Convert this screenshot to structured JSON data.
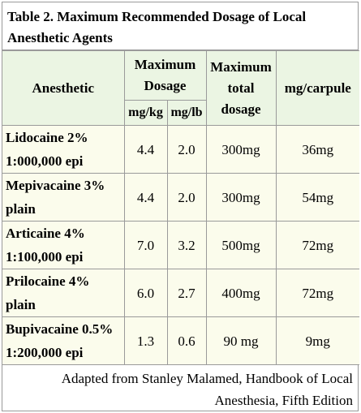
{
  "title": "Table 2. Maximum Recommended Dosage of Local Anesthetic Agents",
  "headers": {
    "anesthetic": "Anesthetic",
    "max_dosage": "Maximum Dosage",
    "mg_kg": "mg/kg",
    "mg_lb": "mg/lb",
    "max_total": "Maximum total dosage",
    "mg_carpule": "mg/carpule"
  },
  "rows": [
    {
      "line1": "Lidocaine 2%",
      "line2": "1:000,000 epi",
      "mg_kg": "4.4",
      "mg_lb": "2.0",
      "total": "300mg",
      "carpule": "36mg"
    },
    {
      "line1": "Mepivacaine 3%",
      "line2": "plain",
      "mg_kg": "4.4",
      "mg_lb": "2.0",
      "total": "300mg",
      "carpule": "54mg"
    },
    {
      "line1": "Articaine 4%",
      "line2": "1:100,000 epi",
      "mg_kg": "7.0",
      "mg_lb": "3.2",
      "total": "500mg",
      "carpule": "72mg"
    },
    {
      "line1": "Prilocaine 4%",
      "line2": "plain",
      "mg_kg": "6.0",
      "mg_lb": "2.7",
      "total": "400mg",
      "carpule": "72mg"
    },
    {
      "line1": "Bupivacaine 0.5%",
      "line2": "1:200,000 epi",
      "mg_kg": "1.3",
      "mg_lb": "0.6",
      "total": "90 mg",
      "carpule": "9mg"
    }
  ],
  "footer": "Adapted from Stanley Malamed, Handbook of Local Anesthesia, Fifth Edition",
  "colors": {
    "header_bg": "#ebf5e3",
    "body_bg": "#fbfcec",
    "border": "#9a9a9a"
  }
}
